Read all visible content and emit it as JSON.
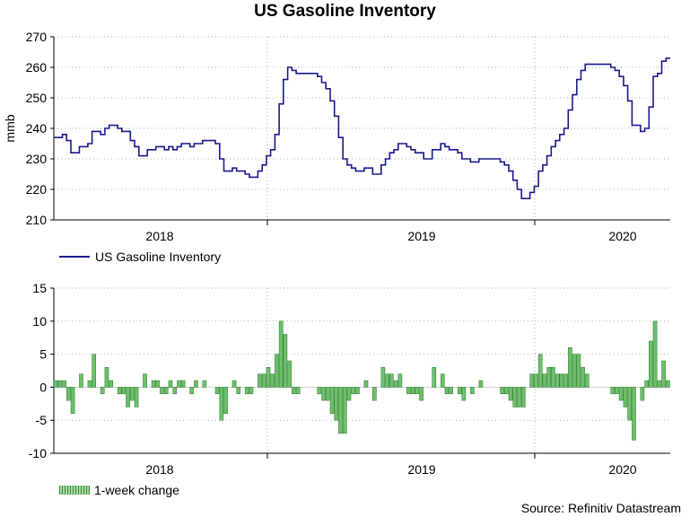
{
  "colors": {
    "line": "#1a1a8c",
    "bar_fill": "#6cbf6c",
    "bar_edge": "#2f7a2f",
    "grid": "#9fbf9f",
    "axis": "#000000"
  },
  "chart_data": [
    {
      "type": "line",
      "title": "US Gasoline Inventory",
      "ylabel": "mmb",
      "xlabel": "",
      "ylim": [
        210,
        270
      ],
      "yticks": [
        "210",
        "220",
        "230",
        "240",
        "250",
        "260",
        "270"
      ],
      "x_tick_labels": [
        "2018",
        "2019",
        "2020"
      ],
      "legend": "US Gasoline Inventory",
      "x_start": "2017-07",
      "x_end": "2020-03",
      "series": [
        {
          "name": "US Gasoline Inventory",
          "values": [
            237,
            237,
            238,
            236,
            232,
            232,
            234,
            234,
            235,
            239,
            239,
            238,
            240,
            241,
            241,
            240,
            239,
            239,
            236,
            234,
            231,
            231,
            233,
            233,
            234,
            234,
            233,
            234,
            233,
            234,
            235,
            235,
            234,
            235,
            235,
            236,
            236,
            236,
            235,
            230,
            226,
            226,
            227,
            226,
            226,
            225,
            224,
            224,
            226,
            228,
            231,
            233,
            238,
            248,
            256,
            260,
            259,
            258,
            258,
            258,
            258,
            258,
            257,
            255,
            253,
            249,
            244,
            237,
            230,
            228,
            227,
            226,
            226,
            227,
            227,
            225,
            225,
            228,
            230,
            232,
            233,
            235,
            235,
            234,
            233,
            232,
            232,
            230,
            230,
            233,
            233,
            235,
            234,
            233,
            233,
            232,
            230,
            230,
            229,
            229,
            230,
            230,
            230,
            230,
            230,
            229,
            228,
            226,
            223,
            220,
            217,
            217,
            219,
            221,
            226,
            228,
            231,
            234,
            236,
            238,
            240,
            246,
            251,
            256,
            259,
            261,
            261,
            261,
            261,
            261,
            261,
            260,
            259,
            257,
            254,
            249,
            241,
            241,
            239,
            240,
            247,
            257,
            258,
            262,
            263
          ]
        }
      ]
    },
    {
      "type": "bar",
      "title": "",
      "ylabel": "",
      "xlabel": "",
      "ylim": [
        -10,
        15
      ],
      "yticks": [
        "-10",
        "-5",
        "0",
        "5",
        "10",
        "15"
      ],
      "x_tick_labels": [
        "2018",
        "2019",
        "2020"
      ],
      "legend": "1-week change",
      "series": [
        {
          "name": "1-week change",
          "values": [
            1,
            1,
            1,
            -2,
            -4,
            0,
            2,
            0,
            1,
            5,
            0,
            -1,
            3,
            1,
            0,
            -1,
            -1,
            -3,
            -2,
            -3,
            0,
            2,
            0,
            1,
            1,
            -1,
            -1,
            1,
            -1,
            1,
            1,
            0,
            -1,
            1,
            0,
            1,
            0,
            0,
            -1,
            -5,
            -4,
            0,
            1,
            -1,
            0,
            -1,
            -1,
            0,
            2,
            2,
            3,
            2,
            5,
            10,
            8,
            4,
            -1,
            -1,
            0,
            0,
            0,
            0,
            -1,
            -2,
            -2,
            -4,
            -5,
            -7,
            -7,
            -2,
            -1,
            -1,
            0,
            1,
            0,
            -2,
            0,
            3,
            2,
            2,
            1,
            2,
            0,
            -1,
            -1,
            -1,
            -2,
            0,
            0,
            3,
            0,
            2,
            -1,
            -1,
            0,
            -1,
            -2,
            0,
            -1,
            0,
            1,
            0,
            0,
            0,
            0,
            -1,
            -1,
            -2,
            -3,
            -3,
            -3,
            0,
            2,
            2,
            5,
            2,
            3,
            3,
            2,
            2,
            2,
            6,
            5,
            5,
            3,
            2,
            0,
            0,
            0,
            0,
            0,
            -1,
            -1,
            -2,
            -3,
            -5,
            -8,
            0,
            -2,
            1,
            7,
            10,
            1,
            4,
            1
          ]
        }
      ]
    }
  ],
  "source_text": "Source: Refinitiv Datastream"
}
